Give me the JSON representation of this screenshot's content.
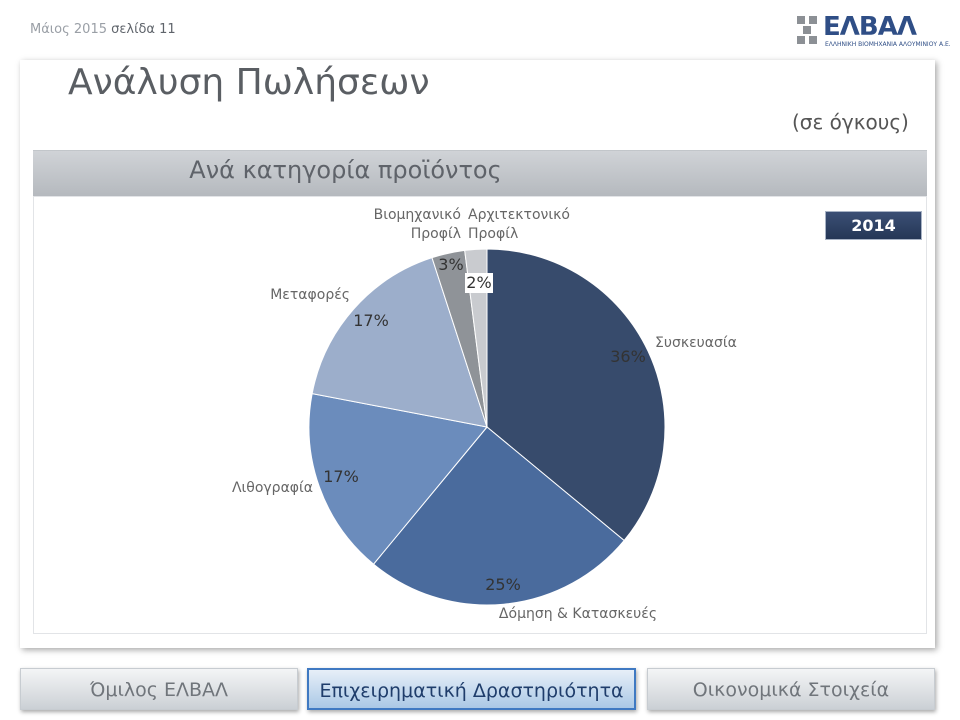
{
  "header": {
    "date": "Μάιος 2015",
    "page": "σελίδα 11",
    "logo_brand": "ΕΛΒΑΛ",
    "logo_tagline": "ΕΛΛΗΝΙΚΗ ΒΙΟΜΗΧΑΝΙΑ ΑΛΟΥΜΙΝΙΟΥ Α.Ε."
  },
  "main": {
    "title": "Ανάλυση Πωλήσεων",
    "units_note": "(σε όγκους)",
    "section_title": "Ανά κατηγορία προϊόντος",
    "year_badge": "2014"
  },
  "chart_data": {
    "type": "pie",
    "title": "",
    "categories": [
      "Συσκευασία",
      "Δόμηση & Κατασκευές",
      "Λιθογραφία",
      "Μεταφορές",
      "Βιομηχανικό Προφίλ",
      "Αρχιτεκτονικό Προφίλ"
    ],
    "values": [
      36,
      25,
      17,
      17,
      3,
      2
    ],
    "value_labels": [
      "36%",
      "25%",
      "17%",
      "17%",
      "3%",
      "2%"
    ],
    "colors": [
      "#374b6c",
      "#4a6b9d",
      "#6b8cbc",
      "#9caecb",
      "#8f9398",
      "#c9cbcf"
    ],
    "legend": "none"
  },
  "nav": {
    "tabs": [
      {
        "label": "Όμιλος ΕΛΒΑΛ",
        "active": false
      },
      {
        "label": "Επιχειρηματική Δραστηριότητα",
        "active": true
      },
      {
        "label": "Οικονομικά Στοιχεία",
        "active": false
      }
    ]
  }
}
